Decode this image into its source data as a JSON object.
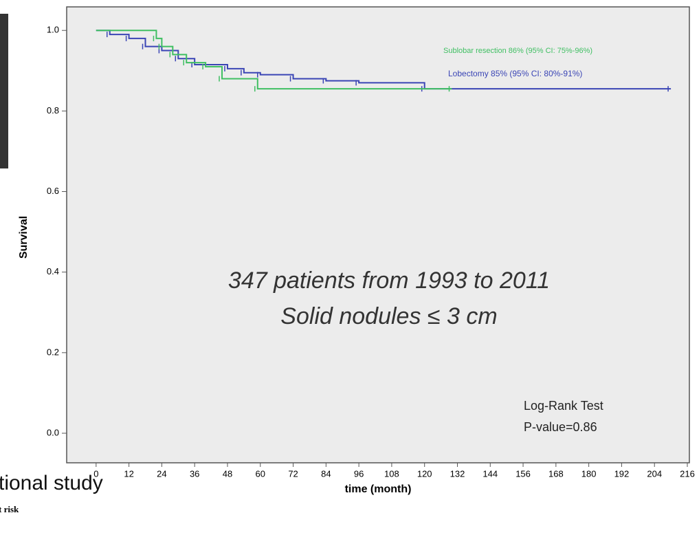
{
  "chart_data": {
    "type": "line",
    "step": true,
    "xlabel": "time (month)",
    "ylabel": "Survival",
    "xlim": [
      -10,
      216
    ],
    "ylim": [
      -0.07,
      1.055
    ],
    "xticks": [
      0,
      12,
      24,
      36,
      48,
      60,
      72,
      84,
      96,
      108,
      120,
      132,
      144,
      156,
      168,
      180,
      192,
      204,
      216
    ],
    "yticks": [
      {
        "value": 0,
        "label": "0.0"
      },
      {
        "value": 0.2,
        "label": "0.2"
      },
      {
        "value": 0.4,
        "label": "0.4"
      },
      {
        "value": 0.6,
        "label": "0.6"
      },
      {
        "value": 0.8,
        "label": "0.8"
      },
      {
        "value": 1,
        "label": "1.0"
      }
    ],
    "series": [
      {
        "name": "Lobectomy 85% (95% CI: 80%-91%)",
        "color": "#3a45b5",
        "x": [
          0,
          5,
          12,
          18,
          24,
          30,
          36,
          48,
          54,
          60,
          72,
          84,
          96,
          120,
          210
        ],
        "values": [
          1,
          0.99,
          0.98,
          0.96,
          0.95,
          0.93,
          0.915,
          0.905,
          0.895,
          0.89,
          0.88,
          0.875,
          0.87,
          0.855,
          0.855
        ]
      },
      {
        "name": "Sublobar resection 86% (95% CI: 75%-96%)",
        "color": "#3fbf62",
        "x": [
          0,
          22,
          24,
          28,
          33,
          40,
          46,
          59,
          130
        ],
        "values": [
          1,
          0.98,
          0.96,
          0.94,
          0.92,
          0.91,
          0.88,
          0.855,
          0.855
        ]
      }
    ],
    "annotations": [
      "347 patients from 1993 to 2011",
      "Solid nodules ≤ 3 cm",
      "Log-Rank Test",
      "P-value=0.86"
    ]
  },
  "background_texts": [
    "tional study",
    "t risk"
  ]
}
